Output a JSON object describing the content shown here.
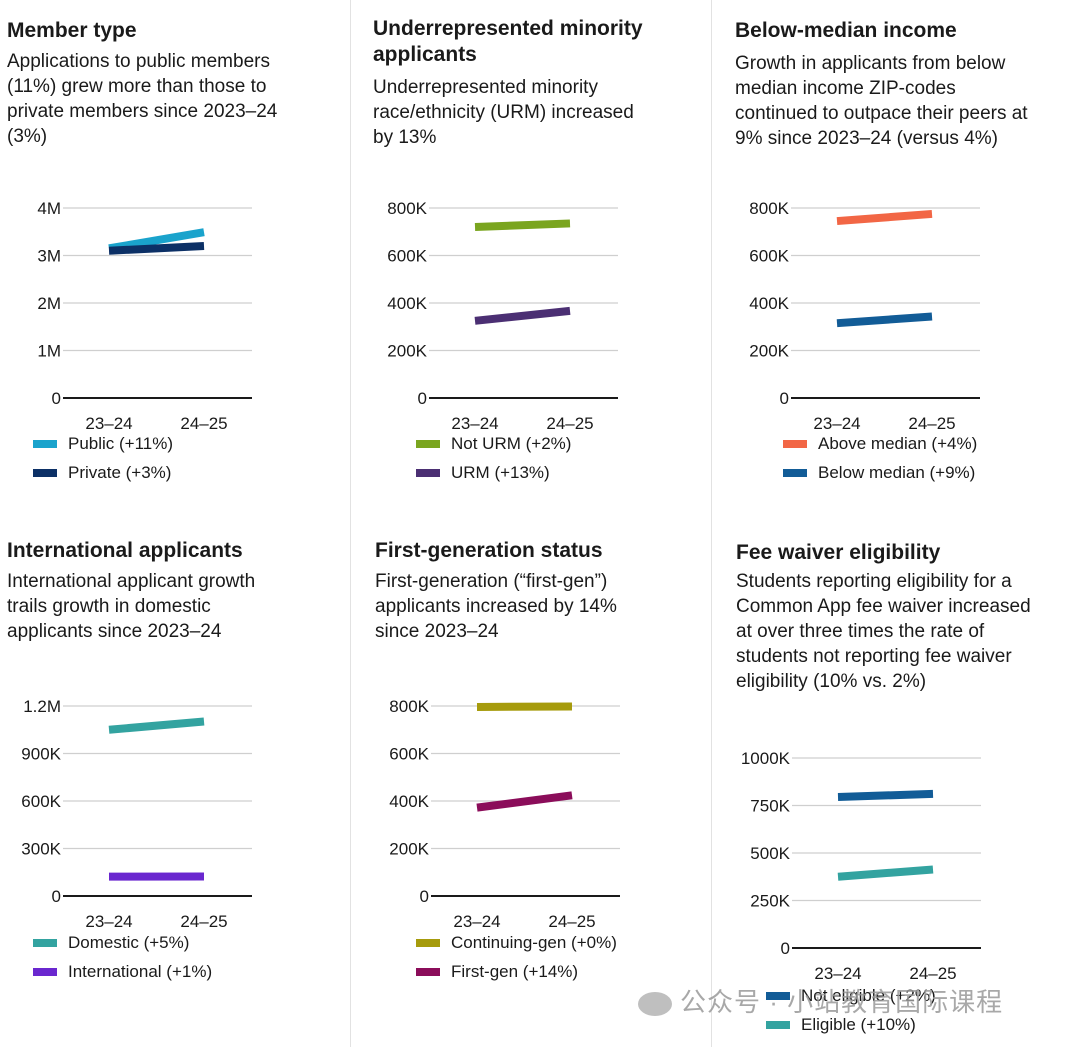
{
  "panels": [
    {
      "title": "Member type",
      "subtitle": [
        "Applications to public members",
        "(11%) grew more than those to",
        "private members since 2023–24",
        "(3%)"
      ],
      "ticks": [
        "4M",
        "3M",
        "2M",
        "1M",
        "0"
      ]
    },
    {
      "title": [
        "Underrepresented minority",
        "applicants"
      ],
      "subtitle": [
        "Underrepresented minority",
        "race/ethnicity (URM) increased",
        "by 13%"
      ],
      "ticks": [
        "800K",
        "600K",
        "400K",
        "200K",
        "0"
      ]
    },
    {
      "title": "Below-median income",
      "subtitle": [
        "Growth in applicants from below",
        "median income ZIP-codes",
        "continued to outpace their peers at",
        "9% since 2023–24 (versus 4%)"
      ],
      "ticks": [
        "800K",
        "600K",
        "400K",
        "200K",
        "0"
      ]
    },
    {
      "title": "International applicants",
      "subtitle": [
        "International applicant growth",
        "trails growth in domestic",
        "applicants since 2023–24"
      ],
      "ticks": [
        "1.2M",
        "900K",
        "600K",
        "300K",
        "0"
      ]
    },
    {
      "title": "First-generation status",
      "subtitle": [
        "First-generation (“first-gen”)",
        "applicants increased by 14%",
        "since 2023–24"
      ],
      "ticks": [
        "800K",
        "600K",
        "400K",
        "200K",
        "0"
      ]
    },
    {
      "title": "Fee waiver eligibility",
      "subtitle": [
        "Students reporting eligibility for a",
        "Common App fee waiver increased",
        "at over three times the rate of",
        "students not reporting fee waiver",
        "eligibility (10% vs. 2%)"
      ],
      "ticks": [
        "1000K",
        "750K",
        "500K",
        "250K",
        "0"
      ]
    }
  ],
  "chart_data": [
    {
      "type": "line",
      "title": "Member type",
      "categories": [
        "23–24",
        "24–25"
      ],
      "ylim": [
        0,
        4000000
      ],
      "series": [
        {
          "name": "Public (+11%)",
          "color": "#1aa3cc",
          "values": [
            3150000,
            3490000
          ]
        },
        {
          "name": "Private (+3%)",
          "color": "#0c3066",
          "values": [
            3100000,
            3200000
          ]
        }
      ]
    },
    {
      "type": "line",
      "title": "Underrepresented minority applicants",
      "categories": [
        "23–24",
        "24–25"
      ],
      "ylim": [
        0,
        800000
      ],
      "series": [
        {
          "name": "Not URM (+2%)",
          "color": "#7aa51f",
          "values": [
            720000,
            735000
          ]
        },
        {
          "name": "URM (+13%)",
          "color": "#4b2f73",
          "values": [
            325000,
            367000
          ]
        }
      ]
    },
    {
      "type": "line",
      "title": "Below-median income",
      "categories": [
        "23–24",
        "24–25"
      ],
      "ylim": [
        0,
        800000
      ],
      "series": [
        {
          "name": "Above median (+4%)",
          "color": "#f26645",
          "values": [
            745000,
            775000
          ]
        },
        {
          "name": "Below median (+9%)",
          "color": "#125c97",
          "values": [
            315000,
            343000
          ]
        }
      ]
    },
    {
      "type": "line",
      "title": "International applicants",
      "categories": [
        "23–24",
        "24–25"
      ],
      "ylim": [
        0,
        1200000
      ],
      "series": [
        {
          "name": "Domestic (+5%)",
          "color": "#33a3a0",
          "values": [
            1050000,
            1102000
          ]
        },
        {
          "name": "International (+1%)",
          "color": "#6a27cf",
          "values": [
            122000,
            123000
          ]
        }
      ]
    },
    {
      "type": "line",
      "title": "First-generation status",
      "categories": [
        "23–24",
        "24–25"
      ],
      "ylim": [
        0,
        800000
      ],
      "series": [
        {
          "name": "Continuing-gen (+0%)",
          "color": "#a69b0c",
          "values": [
            796000,
            798000
          ]
        },
        {
          "name": "First-gen (+14%)",
          "color": "#8b0d5a",
          "values": [
            372000,
            424000
          ]
        }
      ]
    },
    {
      "type": "line",
      "title": "Fee waiver eligibility",
      "categories": [
        "23–24",
        "24–25"
      ],
      "ylim": [
        0,
        1000000
      ],
      "series": [
        {
          "name": "Not eligible (+2%)",
          "color": "#125c97",
          "values": [
            795000,
            811000
          ]
        },
        {
          "name": "Eligible (+10%)",
          "color": "#33a3a0",
          "values": [
            375000,
            413000
          ]
        }
      ]
    }
  ],
  "watermark": "公众号 · 小站教育国际课程"
}
